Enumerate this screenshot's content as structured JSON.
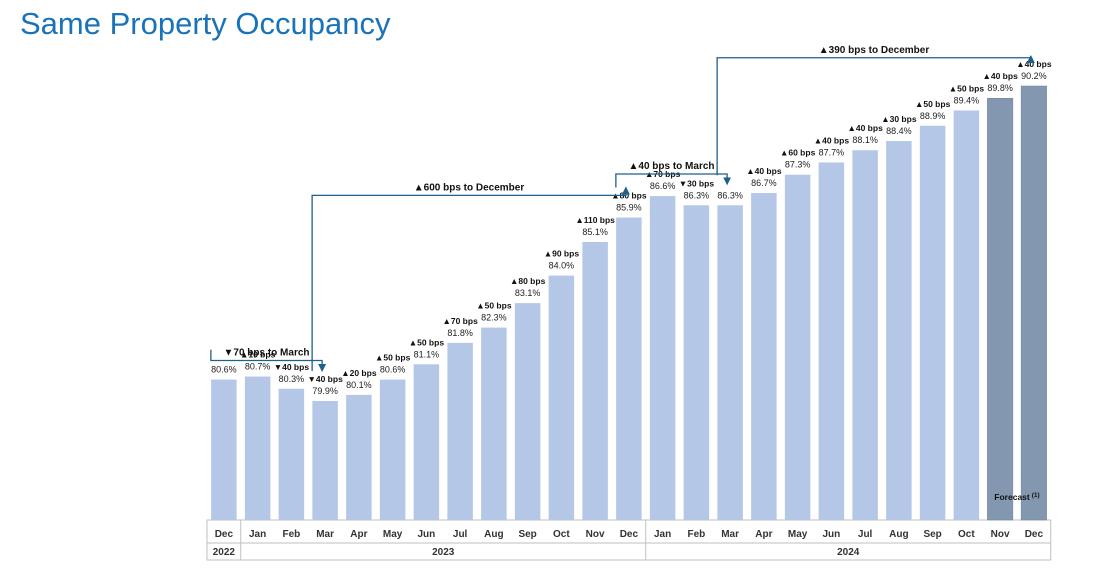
{
  "title": "Same Property Occupancy",
  "colors": {
    "actual": "#b4c7e7",
    "forecast": "#8497b0",
    "arrow": "#1f5f8b",
    "title": "#1a73b8"
  },
  "chart_data": {
    "type": "bar",
    "title": "Same Property Occupancy",
    "categories": [
      "Dec",
      "Jan",
      "Feb",
      "Mar",
      "Apr",
      "May",
      "Jun",
      "Jul",
      "Aug",
      "Sep",
      "Oct",
      "Nov",
      "Dec",
      "Jan",
      "Feb",
      "Mar",
      "Apr",
      "May",
      "Jun",
      "Jul",
      "Aug",
      "Sep",
      "Oct",
      "Nov",
      "Dec"
    ],
    "years": [
      {
        "label": "2022",
        "from": 0,
        "to": 0
      },
      {
        "label": "2023",
        "from": 1,
        "to": 12
      },
      {
        "label": "2024",
        "from": 13,
        "to": 24
      }
    ],
    "values": [
      80.6,
      80.7,
      80.3,
      79.9,
      80.1,
      80.6,
      81.1,
      81.8,
      82.3,
      83.1,
      84.0,
      85.1,
      85.9,
      86.6,
      86.3,
      86.3,
      86.7,
      87.3,
      87.7,
      88.1,
      88.4,
      88.9,
      89.4,
      89.8,
      90.2
    ],
    "value_labels": [
      "80.6%",
      "80.7%",
      "80.3%",
      "79.9%",
      "80.1%",
      "80.6%",
      "81.1%",
      "81.8%",
      "82.3%",
      "83.1%",
      "84.0%",
      "85.1%",
      "85.9%",
      "86.6%",
      "86.3%",
      "86.3%",
      "86.7%",
      "87.3%",
      "87.7%",
      "88.1%",
      "88.4%",
      "88.9%",
      "89.4%",
      "89.8%",
      "90.2%"
    ],
    "change_labels": [
      "",
      "▲10 bps",
      "▼40 bps",
      "▼40 bps",
      "▲20 bps",
      "▲50 bps",
      "▲50 bps",
      "▲70 bps",
      "▲50 bps",
      "▲80 bps",
      "▲90 bps",
      "▲110 bps",
      "▲80 bps",
      "▲70 bps",
      "▼30 bps",
      "",
      "▲40 bps",
      "▲60 bps",
      "▲40 bps",
      "▲40 bps",
      "▲30 bps",
      "▲50 bps",
      "▲50 bps",
      "▲40 bps",
      "▲40 bps"
    ],
    "forecast_indices": [
      23,
      24
    ],
    "forecast_label": "Forecast",
    "forecast_footnote": "(1)",
    "annotations": [
      {
        "text": "▼70 bps to March",
        "from": 0,
        "to": 3,
        "peak": 80.7
      },
      {
        "text": "▲600 bps to December",
        "from": 3,
        "to": 12,
        "peak": 86.1
      },
      {
        "text": "▲40 bps to March",
        "from": 12,
        "to": 15,
        "peak": 86.8
      },
      {
        "text": "▲390 bps to December",
        "from": 15,
        "to": 24,
        "peak": 90.6
      }
    ]
  }
}
